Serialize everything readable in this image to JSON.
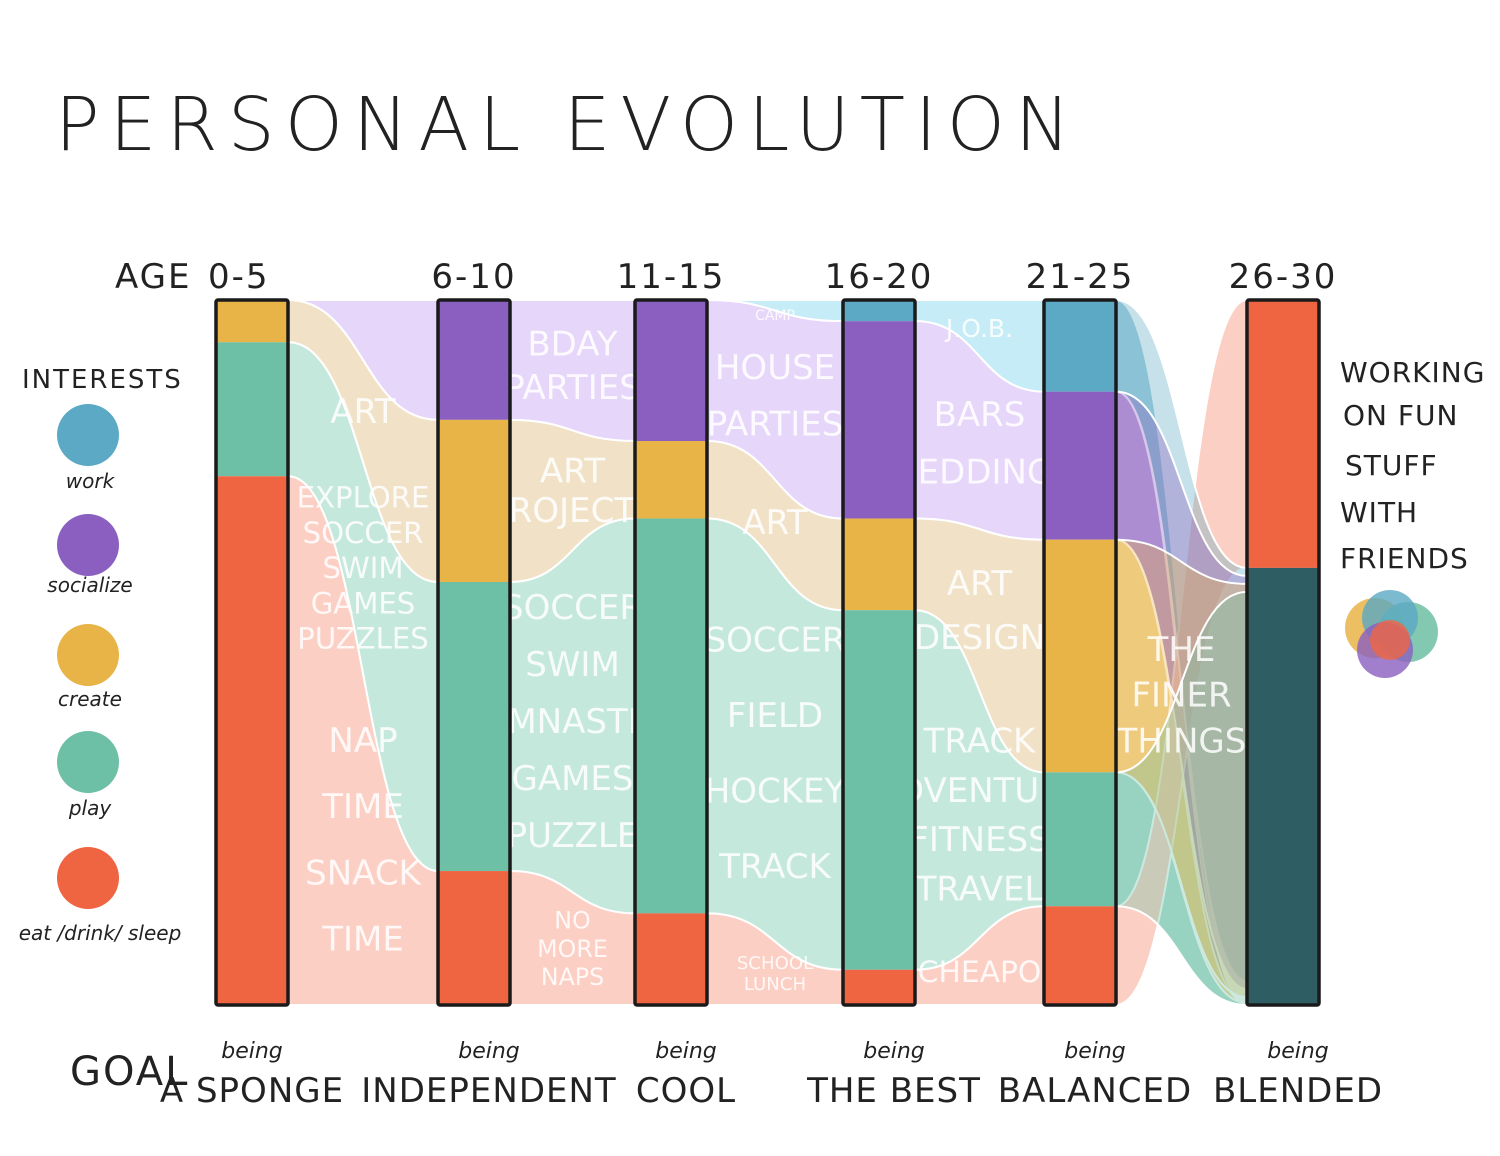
{
  "title": "PERSONAL EVOLUTION",
  "age_label": "AGE",
  "goal_label": "GOAL",
  "goal_prefix": "being",
  "legend": {
    "title": "INTERESTS",
    "items": [
      {
        "key": "work",
        "label": "work",
        "color": "#5BA9C4"
      },
      {
        "key": "socialize",
        "label": "socialize",
        "color": "#8B5FC0"
      },
      {
        "key": "create",
        "label": "create",
        "color": "#E8B447"
      },
      {
        "key": "play",
        "label": "play",
        "color": "#6DBFA5"
      },
      {
        "key": "eat",
        "label": "eat /drink/ sleep",
        "color": "#EF6542"
      }
    ]
  },
  "side_note": [
    "WORKING",
    "ON FUN",
    "STUFF",
    "WITH",
    "FRIENDS"
  ],
  "chart_data": {
    "type": "stacked-bar-flow",
    "categories": [
      "0-5",
      "6-10",
      "11-15",
      "16-20",
      "21-25",
      "26-30"
    ],
    "goals": [
      "A SPONGE",
      "INDEPENDENT",
      "COOL",
      "THE BEST",
      "BALANCED",
      "BLENDED"
    ],
    "series": [
      {
        "name": "work",
        "values": [
          0,
          0,
          0,
          3,
          13,
          0
        ]
      },
      {
        "name": "socialize",
        "values": [
          0,
          17,
          20,
          28,
          21,
          0
        ]
      },
      {
        "name": "create",
        "values": [
          6,
          23,
          11,
          13,
          33,
          0
        ]
      },
      {
        "name": "play",
        "values": [
          19,
          41,
          56,
          51,
          19,
          0
        ]
      },
      {
        "name": "eat",
        "values": [
          75,
          19,
          13,
          5,
          14,
          38
        ]
      },
      {
        "name": "blended",
        "values": [
          0,
          0,
          0,
          0,
          0,
          62
        ]
      }
    ],
    "flow_labels": [
      {
        "text": "BDAY",
        "band": 1,
        "between": [
          1,
          2
        ]
      },
      {
        "text": "PARTIES",
        "band": 1,
        "between": [
          1,
          2
        ]
      },
      {
        "text": "HOUSE",
        "band": 1,
        "between": [
          2,
          3
        ]
      },
      {
        "text": "PARTIES",
        "band": 1,
        "between": [
          2,
          3
        ]
      },
      {
        "text": "CAMP",
        "band": 0,
        "between": [
          2,
          3
        ]
      },
      {
        "text": "J.O.B.",
        "band": 0,
        "between": [
          3,
          4
        ]
      },
      {
        "text": "BARS",
        "band": 1,
        "between": [
          3,
          4
        ]
      },
      {
        "text": "WEDDINGS",
        "band": 1,
        "between": [
          3,
          4
        ]
      },
      {
        "text": "ART",
        "band": 2,
        "between": [
          0,
          1
        ]
      },
      {
        "text": "ART",
        "band": 2,
        "between": [
          1,
          2
        ]
      },
      {
        "text": "PROJECTS",
        "band": 2,
        "between": [
          1,
          2
        ]
      },
      {
        "text": "ART",
        "band": 2,
        "between": [
          2,
          3
        ]
      },
      {
        "text": "ART",
        "band": 2,
        "between": [
          3,
          4
        ]
      },
      {
        "text": "DESIGN",
        "band": 2,
        "between": [
          3,
          4
        ]
      },
      {
        "text": "EXPLORE",
        "band": 3,
        "between": [
          0,
          1
        ]
      },
      {
        "text": "SOCCER",
        "band": 3,
        "between": [
          0,
          1
        ]
      },
      {
        "text": "SWIM",
        "band": 3,
        "between": [
          0,
          1
        ]
      },
      {
        "text": "GAMES",
        "band": 3,
        "between": [
          0,
          1
        ]
      },
      {
        "text": "PUZZLES",
        "band": 3,
        "between": [
          0,
          1
        ]
      },
      {
        "text": "SOCCER",
        "band": 3,
        "between": [
          1,
          2
        ]
      },
      {
        "text": "SWIM",
        "band": 3,
        "between": [
          1,
          2
        ]
      },
      {
        "text": "GYMNASTICS",
        "band": 3,
        "between": [
          1,
          2
        ]
      },
      {
        "text": "GAMES",
        "band": 3,
        "between": [
          1,
          2
        ]
      },
      {
        "text": "PUZZLE",
        "band": 3,
        "between": [
          1,
          2
        ]
      },
      {
        "text": "SOCCER",
        "band": 3,
        "between": [
          2,
          3
        ]
      },
      {
        "text": "FIELD",
        "band": 3,
        "between": [
          2,
          3
        ]
      },
      {
        "text": "HOCKEY",
        "band": 3,
        "between": [
          2,
          3
        ]
      },
      {
        "text": "TRACK",
        "band": 3,
        "between": [
          2,
          3
        ]
      },
      {
        "text": "TRACK",
        "band": 3,
        "between": [
          3,
          4
        ]
      },
      {
        "text": "ADVENTURE",
        "band": 3,
        "between": [
          3,
          4
        ]
      },
      {
        "text": "FITNESS",
        "band": 3,
        "between": [
          3,
          4
        ]
      },
      {
        "text": "TRAVEL",
        "band": 3,
        "between": [
          3,
          4
        ]
      },
      {
        "text": "NAP",
        "band": 4,
        "between": [
          0,
          1
        ]
      },
      {
        "text": "TIME",
        "band": 4,
        "between": [
          0,
          1
        ]
      },
      {
        "text": "SNACK",
        "band": 4,
        "between": [
          0,
          1
        ]
      },
      {
        "text": "TIME",
        "band": 4,
        "between": [
          0,
          1
        ]
      },
      {
        "text": "NO",
        "band": 4,
        "between": [
          1,
          2
        ]
      },
      {
        "text": "MORE",
        "band": 4,
        "between": [
          1,
          2
        ]
      },
      {
        "text": "NAPS",
        "band": 4,
        "between": [
          1,
          2
        ]
      },
      {
        "text": "SCHOOL",
        "band": 4,
        "between": [
          2,
          3
        ]
      },
      {
        "text": "LUNCH",
        "band": 4,
        "between": [
          2,
          3
        ]
      },
      {
        "text": "CHEAPO",
        "band": 4,
        "between": [
          3,
          4
        ]
      },
      {
        "text": "THE",
        "band": 4,
        "between": [
          4,
          5
        ]
      },
      {
        "text": "FINER",
        "band": 4,
        "between": [
          4,
          5
        ]
      },
      {
        "text": "THINGS",
        "band": 4,
        "between": [
          4,
          5
        ]
      }
    ],
    "colors": {
      "work": "#5BA9C4",
      "socialize": "#8B5FC0",
      "create": "#E8B447",
      "play": "#6DBFA5",
      "eat": "#EF6542",
      "blended": "#2E5E63"
    },
    "flow_colors": {
      "work": "#C6EDF7",
      "socialize": "#E6D6FA",
      "create": "#F1E2C7",
      "play": "#C5E8DD",
      "eat": "#FCCFC4"
    }
  }
}
